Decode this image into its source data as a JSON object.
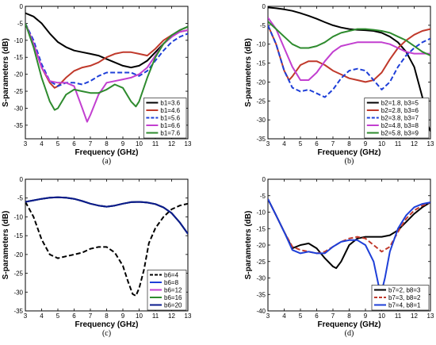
{
  "chart_data": [
    {
      "type": "line",
      "caption": "(a)",
      "xlabel": "Frequency (GHz)",
      "ylabel": "S-parameters (dB)",
      "xlim": [
        3,
        13
      ],
      "ylim": [
        -39,
        0
      ],
      "xticks": [
        3,
        4,
        5,
        6,
        7,
        8,
        9,
        10,
        11,
        12,
        13
      ],
      "yticks": [
        0,
        -5,
        -10,
        -15,
        -20,
        -25,
        -30,
        -35
      ],
      "legend_position": "bottom-right",
      "series": [
        {
          "name": "b1=3.6",
          "color": "#000000",
          "dash": "solid",
          "x": [
            3,
            3.5,
            4,
            4.5,
            5,
            5.5,
            6,
            6.5,
            7,
            7.5,
            8,
            8.5,
            9,
            9.5,
            10,
            10.5,
            11,
            11.5,
            12,
            12.5,
            13
          ],
          "y": [
            -2,
            -3,
            -5,
            -8,
            -10.5,
            -12,
            -13,
            -13.5,
            -14,
            -14.5,
            -15.5,
            -16.5,
            -17.5,
            -18,
            -17.5,
            -16,
            -13.5,
            -11,
            -9,
            -7,
            -6
          ]
        },
        {
          "name": "b1=4.6",
          "color": "#c0392b",
          "dash": "solid",
          "x": [
            3,
            3.5,
            4,
            4.5,
            4.8,
            5,
            5.5,
            6,
            6.5,
            7,
            7.5,
            8,
            8.5,
            9,
            9.5,
            10,
            10.5,
            11,
            11.5,
            12,
            12.5,
            13
          ],
          "y": [
            -5,
            -11,
            -18,
            -22.5,
            -24,
            -23.5,
            -21,
            -19,
            -18,
            -17.5,
            -16.5,
            -15,
            -14,
            -13.5,
            -13.5,
            -14,
            -14.5,
            -12.5,
            -10,
            -8.5,
            -7.5,
            -7
          ]
        },
        {
          "name": "b1=5.6",
          "color": "#1e3fd8",
          "dash": "dash",
          "x": [
            3,
            3.5,
            4,
            4.5,
            5,
            5.5,
            6,
            6.5,
            7,
            7.5,
            8,
            8.5,
            9,
            9.5,
            10,
            10.5,
            11,
            11.5,
            12,
            12.5,
            13
          ],
          "y": [
            -5,
            -10,
            -17,
            -22,
            -23.5,
            -22.5,
            -22.5,
            -23,
            -22,
            -20.5,
            -19.5,
            -19.5,
            -19.5,
            -19.5,
            -20.5,
            -19,
            -16,
            -13,
            -10.5,
            -9,
            -8
          ]
        },
        {
          "name": "b1=6.6",
          "color": "#c23fd0",
          "dash": "solid",
          "x": [
            3,
            3.5,
            4,
            4.5,
            5,
            5.5,
            6,
            6.5,
            6.8,
            7,
            7.5,
            8,
            8.5,
            9,
            9.5,
            10,
            10.5,
            11,
            11.5,
            12,
            12.5,
            13
          ],
          "y": [
            -5,
            -11,
            -18,
            -22,
            -22.5,
            -22.5,
            -23.5,
            -30,
            -34,
            -32,
            -26,
            -22.5,
            -22,
            -21.5,
            -21,
            -20,
            -18,
            -14.5,
            -11,
            -9,
            -7.5,
            -7
          ]
        },
        {
          "name": "b1=7.6",
          "color": "#2e8b2e",
          "dash": "solid",
          "x": [
            3,
            3.5,
            4,
            4.5,
            4.8,
            5,
            5.5,
            6,
            6.5,
            7,
            7.5,
            8,
            8.5,
            9,
            9.5,
            9.8,
            10,
            10.5,
            11,
            11.5,
            12,
            12.5,
            13
          ],
          "y": [
            -5,
            -12,
            -21,
            -28,
            -30.5,
            -30,
            -26,
            -24.5,
            -25,
            -25.5,
            -25.5,
            -24.5,
            -23,
            -24,
            -28,
            -29.5,
            -28,
            -21,
            -15,
            -11,
            -8.5,
            -7,
            -6
          ]
        }
      ]
    },
    {
      "type": "line",
      "caption": "(b)",
      "xlabel": "Frequency (GHz)",
      "ylabel": "S-parameters (dB)",
      "xlim": [
        3,
        13
      ],
      "ylim": [
        -35,
        0
      ],
      "xticks": [
        3,
        4,
        5,
        6,
        7,
        8,
        9,
        10,
        11,
        12,
        13
      ],
      "yticks": [
        0,
        -5,
        -10,
        -15,
        -20,
        -25,
        -30,
        -35
      ],
      "legend_position": "bottom-right",
      "series": [
        {
          "name": "b2=1.8, b3=5",
          "color": "#000000",
          "dash": "solid",
          "x": [
            3,
            3.5,
            4,
            4.5,
            5,
            5.5,
            6,
            6.5,
            7,
            7.5,
            8,
            8.5,
            9,
            9.5,
            10,
            10.5,
            11,
            11.5,
            12,
            12.5,
            12.8,
            13
          ],
          "y": [
            -0.3,
            -0.5,
            -0.8,
            -1.2,
            -1.8,
            -2.5,
            -3.3,
            -4.2,
            -5,
            -5.6,
            -6,
            -6.2,
            -6.3,
            -6.5,
            -7,
            -8,
            -9.5,
            -12,
            -16,
            -24,
            -31,
            -33
          ]
        },
        {
          "name": "b2=2.8, b3=6",
          "color": "#c0392b",
          "dash": "solid",
          "x": [
            3,
            3.5,
            4,
            4.3,
            4.5,
            5,
            5.5,
            6,
            6.5,
            7,
            7.5,
            8,
            8.5,
            9,
            9.5,
            10,
            10.5,
            11,
            11.5,
            12,
            12.5,
            13
          ],
          "y": [
            -5,
            -10,
            -17,
            -19.5,
            -18.5,
            -15.5,
            -14.5,
            -14.5,
            -15.5,
            -17,
            -18,
            -19,
            -19.5,
            -20,
            -19.5,
            -17.5,
            -14,
            -11,
            -9,
            -7.5,
            -6.5,
            -6
          ]
        },
        {
          "name": "b2=3.8, b3=7",
          "color": "#1e3fd8",
          "dash": "dash",
          "x": [
            3,
            3.5,
            4,
            4.5,
            5,
            5.5,
            6,
            6.5,
            7,
            7.5,
            8,
            8.5,
            9,
            9.5,
            10,
            10.5,
            11,
            11.5,
            12,
            12.5,
            13
          ],
          "y": [
            -5,
            -10,
            -17,
            -21.5,
            -22.5,
            -22,
            -23,
            -24,
            -22,
            -19,
            -17,
            -16.5,
            -17,
            -19.5,
            -22,
            -20,
            -16,
            -13,
            -11,
            -9.5,
            -8.5
          ]
        },
        {
          "name": "b2=4.8, b3=8",
          "color": "#c23fd0",
          "dash": "solid",
          "x": [
            3,
            3.5,
            4,
            4.5,
            5,
            5.5,
            6,
            6.5,
            7,
            7.5,
            8,
            8.5,
            9,
            9.5,
            10,
            10.5,
            11,
            11.5,
            12,
            12.5,
            13
          ],
          "y": [
            -3,
            -6,
            -11,
            -16,
            -19.5,
            -19.5,
            -17.5,
            -14.5,
            -12,
            -10.5,
            -10,
            -9.5,
            -9.5,
            -9.5,
            -9.5,
            -10,
            -11,
            -12,
            -12.5,
            -12.5,
            -12.5
          ]
        },
        {
          "name": "b2=5.8, b3=9",
          "color": "#2e8b2e",
          "dash": "solid",
          "x": [
            3,
            3.5,
            4,
            4.5,
            5,
            5.5,
            6,
            6.5,
            7,
            7.5,
            8,
            8.5,
            9,
            9.5,
            10,
            10.5,
            11,
            11.5,
            12,
            12.5,
            13
          ],
          "y": [
            -4,
            -6,
            -8,
            -10,
            -11,
            -11,
            -10.5,
            -9.5,
            -8,
            -7,
            -6.5,
            -6,
            -6,
            -6.2,
            -6.5,
            -7,
            -8,
            -9,
            -10.5,
            -12,
            -13
          ]
        }
      ]
    },
    {
      "type": "line",
      "caption": "(c)",
      "xlabel": "Frequency (GHz)",
      "ylabel": "S-parameters (dB)",
      "xlim": [
        3,
        13
      ],
      "ylim": [
        -35,
        0
      ],
      "xticks": [
        3,
        4,
        5,
        6,
        7,
        8,
        9,
        10,
        11,
        12,
        13
      ],
      "yticks": [
        0,
        -5,
        -10,
        -15,
        -20,
        -25,
        -30,
        -35
      ],
      "legend_position": "bottom-right",
      "series": [
        {
          "name": "b6=4",
          "color": "#000000",
          "dash": "dash",
          "x": [
            3,
            3.5,
            4,
            4.5,
            5,
            5.5,
            6,
            6.5,
            7,
            7.5,
            8,
            8.5,
            9,
            9.3,
            9.6,
            9.8,
            10,
            10.3,
            10.6,
            11,
            11.5,
            12,
            12.5,
            13
          ],
          "y": [
            -6,
            -10,
            -16,
            -20,
            -21,
            -20.5,
            -20,
            -19.5,
            -18.5,
            -18,
            -18,
            -19.5,
            -23,
            -27,
            -30.5,
            -31,
            -29,
            -24,
            -17,
            -13,
            -10,
            -8,
            -7,
            -6.5
          ]
        },
        {
          "name": "b6=8",
          "color": "#1e3fd8",
          "dash": "solid",
          "x": [
            3,
            3.5,
            4,
            4.5,
            5,
            5.5,
            6,
            6.5,
            7,
            7.5,
            8,
            8.5,
            9,
            9.5,
            10,
            10.5,
            11,
            11.5,
            12,
            12.5,
            13
          ],
          "y": [
            -6,
            -5.6,
            -5.2,
            -4.9,
            -4.8,
            -4.9,
            -5.2,
            -5.8,
            -6.5,
            -7,
            -7.3,
            -7,
            -6.5,
            -6.1,
            -6,
            -6.2,
            -6.6,
            -7.5,
            -9,
            -11.5,
            -14.5
          ]
        },
        {
          "name": "b6=12",
          "color": "#c23fd0",
          "dash": "solid",
          "x": [
            3,
            3.5,
            4,
            4.5,
            5,
            5.5,
            6,
            6.5,
            7,
            7.5,
            8,
            8.5,
            9,
            9.5,
            10,
            10.5,
            11,
            11.5,
            12,
            12.5,
            13
          ],
          "y": [
            -6,
            -5.6,
            -5.2,
            -4.9,
            -4.8,
            -4.9,
            -5.2,
            -5.8,
            -6.5,
            -7,
            -7.3,
            -7,
            -6.5,
            -6.1,
            -6,
            -6.2,
            -6.6,
            -7.5,
            -9,
            -11.5,
            -14.5
          ]
        },
        {
          "name": "b6=16",
          "color": "#2e8b2e",
          "dash": "solid",
          "x": [
            3,
            3.5,
            4,
            4.5,
            5,
            5.5,
            6,
            6.5,
            7,
            7.5,
            8,
            8.5,
            9,
            9.5,
            10,
            10.5,
            11,
            11.5,
            12,
            12.5,
            13
          ],
          "y": [
            -6,
            -5.6,
            -5.2,
            -4.9,
            -4.8,
            -4.9,
            -5.2,
            -5.8,
            -6.5,
            -7,
            -7.3,
            -7,
            -6.5,
            -6.1,
            -6,
            -6.2,
            -6.6,
            -7.5,
            -9,
            -11.5,
            -14.5
          ]
        },
        {
          "name": "b6=20",
          "color": "#0a1a8c",
          "dash": "solid",
          "x": [
            3,
            3.5,
            4,
            4.5,
            5,
            5.5,
            6,
            6.5,
            7,
            7.5,
            8,
            8.5,
            9,
            9.5,
            10,
            10.5,
            11,
            11.5,
            12,
            12.5,
            13
          ],
          "y": [
            -6,
            -5.6,
            -5.2,
            -4.9,
            -4.8,
            -4.9,
            -5.2,
            -5.8,
            -6.5,
            -7,
            -7.3,
            -7,
            -6.5,
            -6.1,
            -6,
            -6.2,
            -6.6,
            -7.5,
            -9,
            -11.5,
            -14.5
          ]
        }
      ]
    },
    {
      "type": "line",
      "caption": "(d)",
      "xlabel": "Frequency (GHz)",
      "ylabel": "S-parameters (dB)",
      "xlim": [
        3,
        13
      ],
      "ylim": [
        -40,
        0
      ],
      "xticks": [
        3,
        4,
        5,
        6,
        7,
        8,
        9,
        10,
        11,
        12,
        13
      ],
      "yticks": [
        0,
        -5,
        -10,
        -15,
        -20,
        -25,
        -30,
        -35,
        -40
      ],
      "legend_position": "bottom-right",
      "series": [
        {
          "name": "b7=2, b8=3",
          "color": "#000000",
          "dash": "solid",
          "x": [
            3,
            3.5,
            4,
            4.5,
            5,
            5.5,
            6,
            6.5,
            7,
            7.2,
            7.5,
            8,
            8.5,
            9,
            9.5,
            10,
            10.5,
            11,
            11.5,
            12,
            12.5,
            13
          ],
          "y": [
            -6,
            -11,
            -16,
            -21,
            -20,
            -19.5,
            -21,
            -24,
            -26.5,
            -27,
            -25,
            -20,
            -18,
            -17.5,
            -17.5,
            -17.5,
            -17,
            -15.5,
            -13,
            -10.5,
            -8.5,
            -7
          ]
        },
        {
          "name": "b7=3, b8=2",
          "color": "#c0392b",
          "dash": "dash",
          "x": [
            3,
            3.5,
            4,
            4.5,
            5,
            5.5,
            6,
            6.5,
            7,
            7.5,
            8,
            8.5,
            9,
            9.5,
            10,
            10.5,
            11,
            11.5,
            12,
            12.5,
            13
          ],
          "y": [
            -6,
            -11,
            -16,
            -20.5,
            -21.5,
            -22,
            -22.5,
            -22,
            -20.5,
            -19,
            -18,
            -17.5,
            -18,
            -20,
            -22,
            -20.5,
            -16,
            -12,
            -9.5,
            -8,
            -7
          ]
        },
        {
          "name": "b7=4, b8=1",
          "color": "#1e3fd8",
          "dash": "solid",
          "x": [
            3,
            3.5,
            4,
            4.5,
            5,
            5.5,
            6,
            6.5,
            7,
            7.5,
            8,
            8.5,
            9,
            9.5,
            9.8,
            10,
            10.2,
            10.5,
            11,
            11.5,
            12,
            12.5,
            13
          ],
          "y": [
            -6,
            -11,
            -16,
            -21.5,
            -22.5,
            -22,
            -22.5,
            -22.5,
            -20.5,
            -19,
            -18.5,
            -18.5,
            -20,
            -25,
            -32,
            -34,
            -30,
            -22,
            -15,
            -11,
            -8.5,
            -7.5,
            -7
          ]
        }
      ]
    }
  ]
}
